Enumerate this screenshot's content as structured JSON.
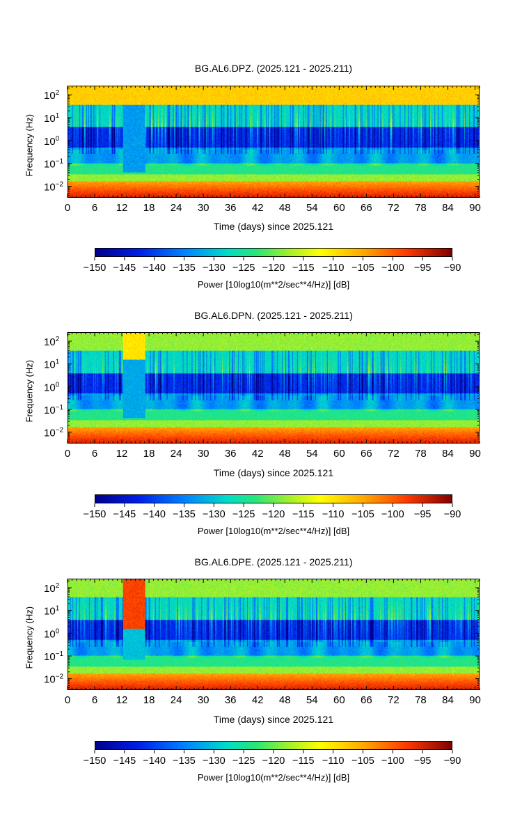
{
  "chart_data": [
    {
      "type": "heatmap",
      "title": "BG.AL6.DPZ. (2025.121 - 2025.211)",
      "xlabel": "Time (days) since 2025.121",
      "ylabel": "Frequency (Hz)",
      "x_ticks": [
        "0",
        "6",
        "12",
        "18",
        "24",
        "30",
        "36",
        "42",
        "48",
        "54",
        "60",
        "66",
        "72",
        "78",
        "84",
        "90"
      ],
      "y_ticks": [
        {
          "base": "10",
          "exp": "2"
        },
        {
          "base": "10",
          "exp": "1"
        },
        {
          "base": "10",
          "exp": "0"
        },
        {
          "base": "10",
          "exp": "−1"
        },
        {
          "base": "10",
          "exp": "−2"
        }
      ],
      "xlim": [
        0,
        91
      ],
      "ylim_log10": [
        -2.5,
        2.4
      ],
      "colorbar": {
        "label": "Power [10log10(m**2/sec**4/Hz)] [dB]",
        "ticks": [
          "−150",
          "−145",
          "−140",
          "−135",
          "−130",
          "−125",
          "−120",
          "−115",
          "−110",
          "−105",
          "−100",
          "−95",
          "−90"
        ],
        "range": [
          -150,
          -90
        ]
      }
    },
    {
      "type": "heatmap",
      "title": "BG.AL6.DPN. (2025.121 - 2025.211)",
      "xlabel": "Time (days) since 2025.121",
      "ylabel": "Frequency (Hz)",
      "x_ticks": [
        "0",
        "6",
        "12",
        "18",
        "24",
        "30",
        "36",
        "42",
        "48",
        "54",
        "60",
        "66",
        "72",
        "78",
        "84",
        "90"
      ],
      "y_ticks": [
        {
          "base": "10",
          "exp": "2"
        },
        {
          "base": "10",
          "exp": "1"
        },
        {
          "base": "10",
          "exp": "0"
        },
        {
          "base": "10",
          "exp": "−1"
        },
        {
          "base": "10",
          "exp": "−2"
        }
      ],
      "xlim": [
        0,
        91
      ],
      "ylim_log10": [
        -2.5,
        2.4
      ],
      "colorbar": {
        "label": "Power [10log10(m**2/sec**4/Hz)] [dB]",
        "ticks": [
          "−150",
          "−145",
          "−140",
          "−135",
          "−130",
          "−125",
          "−120",
          "−115",
          "−110",
          "−105",
          "−100",
          "−95",
          "−90"
        ],
        "range": [
          -150,
          -90
        ]
      }
    },
    {
      "type": "heatmap",
      "title": "BG.AL6.DPE. (2025.121 - 2025.211)",
      "xlabel": "Time (days) since 2025.121",
      "ylabel": "Frequency (Hz)",
      "x_ticks": [
        "0",
        "6",
        "12",
        "18",
        "24",
        "30",
        "36",
        "42",
        "48",
        "54",
        "60",
        "66",
        "72",
        "78",
        "84",
        "90"
      ],
      "y_ticks": [
        {
          "base": "10",
          "exp": "2"
        },
        {
          "base": "10",
          "exp": "1"
        },
        {
          "base": "10",
          "exp": "0"
        },
        {
          "base": "10",
          "exp": "−1"
        },
        {
          "base": "10",
          "exp": "−2"
        }
      ],
      "xlim": [
        0,
        91
      ],
      "ylim_log10": [
        -2.5,
        2.4
      ],
      "colorbar": {
        "label": "Power [10log10(m**2/sec**4/Hz)] [dB]",
        "ticks": [
          "−150",
          "−145",
          "−140",
          "−135",
          "−130",
          "−125",
          "−120",
          "−115",
          "−110",
          "−105",
          "−100",
          "−95",
          "−90"
        ],
        "range": [
          -150,
          -90
        ]
      }
    }
  ]
}
